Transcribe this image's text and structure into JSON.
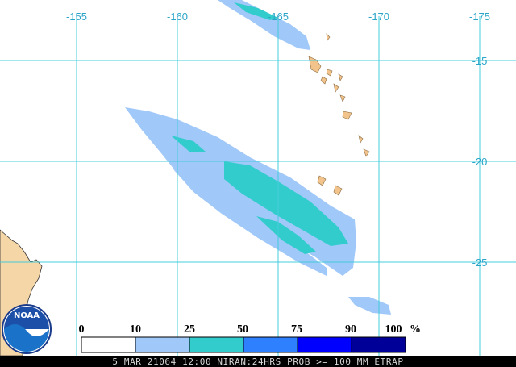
{
  "map": {
    "longitude_labels": [
      "-155",
      "-160",
      "-165",
      "-170",
      "-175"
    ],
    "latitude_labels": [
      "-15",
      "-20",
      "-25"
    ],
    "legend": {
      "labels": [
        "0",
        "10",
        "25",
        "50",
        "75",
        "90",
        "100"
      ],
      "unit": "%"
    },
    "logo": "NOAA",
    "footer": "5 MAR 21064 12:00 NIRAN:24HRS PROB >= 100 MM ETRAP"
  }
}
